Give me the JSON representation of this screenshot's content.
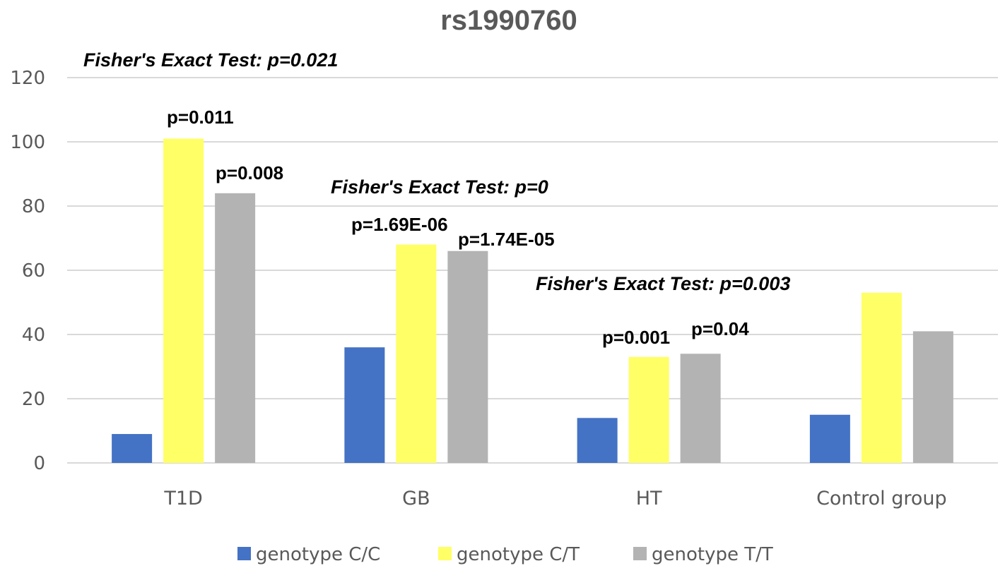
{
  "chart_data": {
    "type": "bar",
    "title": "rs1990760",
    "categories": [
      "T1D",
      "GB",
      "HT",
      "Control group"
    ],
    "series": [
      {
        "name": "genotype C/C",
        "color": "#4472c4",
        "values": [
          9,
          36,
          14,
          15
        ]
      },
      {
        "name": "genotype C/T",
        "color": "#ffff66",
        "values": [
          101,
          68,
          33,
          53
        ]
      },
      {
        "name": "genotype T/T",
        "color": "#b3b3b3",
        "values": [
          84,
          66,
          34,
          41
        ]
      }
    ],
    "ylim": [
      0,
      120
    ],
    "yticks": [
      "0",
      "20",
      "40",
      "60",
      "80",
      "100",
      "120"
    ],
    "grid": true,
    "legend_position": "bottom",
    "xlabel": "",
    "ylabel": "",
    "annotations": {
      "fisher": [
        "Fisher's Exact Test: p=0.021",
        "Fisher's Exact Test: p=0",
        "Fisher's Exact Test: p=0.003"
      ],
      "bar_pvalues": [
        "p=0.011",
        "p=0.008",
        "p=1.69E-06",
        "p=1.74E-05",
        "p=0.001",
        "p=0.04"
      ]
    }
  }
}
